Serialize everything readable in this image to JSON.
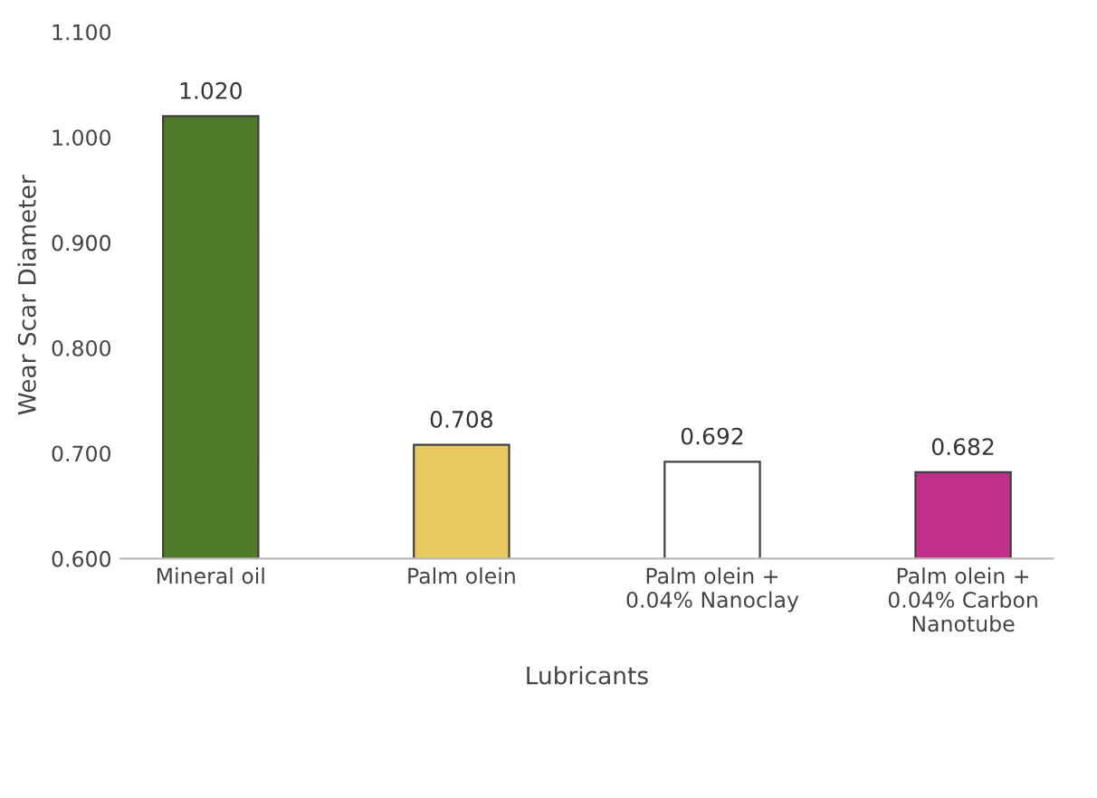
{
  "chart_data": {
    "type": "bar",
    "xlabel": "Lubricants",
    "ylabel": "Wear Scar Diameter",
    "categories": [
      "Mineral oil",
      "Palm olein",
      "Palm olein +\n0.04% Nanoclay",
      "Palm olein +\n0.04% Carbon\nNanotube"
    ],
    "values": [
      1.02,
      0.708,
      0.692,
      0.682
    ],
    "colors": [
      "#4e7a2a",
      "#e8c860",
      "#ffffff",
      "#c0308a"
    ],
    "value_labels": [
      "1.020",
      "0.708",
      "0.692",
      "0.682"
    ],
    "ylim": [
      0.6,
      1.1
    ],
    "yticks": [
      {
        "value": 0.6,
        "label": "0.600"
      },
      {
        "value": 0.7,
        "label": "0.700"
      },
      {
        "value": 0.8,
        "label": "0.800"
      },
      {
        "value": 0.9,
        "label": "0.900"
      },
      {
        "value": 1.0,
        "label": "1.000"
      },
      {
        "value": 1.1,
        "label": "1.100"
      }
    ],
    "grid": false,
    "legend": false
  }
}
